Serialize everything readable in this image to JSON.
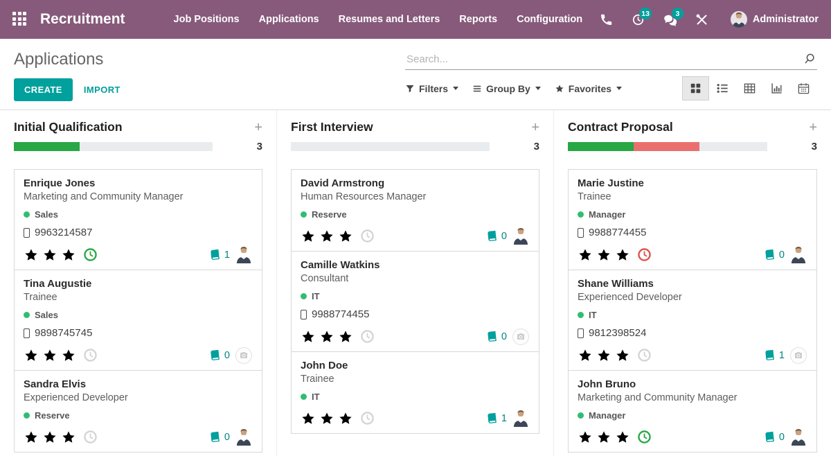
{
  "colors": {
    "topbar_purple": "#875A7B",
    "accent_teal": "#00A09D",
    "progress_green": "#28a745",
    "progress_red": "#e9706e",
    "star_gold": "#efb810",
    "tag_green": "#2fbe71",
    "clock_green": "#28a745",
    "clock_red": "#e0504d"
  },
  "topbar": {
    "app_name": "Recruitment",
    "menu_items": [
      "Job Positions",
      "Applications",
      "Resumes and Letters",
      "Reports",
      "Configuration"
    ],
    "activities_badge": "13",
    "messages_badge": "3",
    "user_name": "Administrator"
  },
  "control_panel": {
    "title": "Applications",
    "create_label": "CREATE",
    "import_label": "IMPORT",
    "search_placeholder": "Search...",
    "filters_label": "Filters",
    "group_by_label": "Group By",
    "favorites_label": "Favorites"
  },
  "kanban": {
    "columns": [
      {
        "title": "Initial Qualification",
        "count": "3",
        "add_label": "+",
        "progress": {
          "green_pct": 33,
          "red_pct": 0
        },
        "cards": [
          {
            "name": "Enrique Jones",
            "role": "Marketing and Community Manager",
            "tag": "Sales",
            "mobile": "9963214587",
            "stars": 1,
            "clock": "green",
            "messages": "1",
            "avatar": "photo"
          },
          {
            "name": "Tina Augustie",
            "role": "Trainee",
            "tag": "Sales",
            "mobile": "9898745745",
            "stars": 0,
            "clock": "muted",
            "messages": "0",
            "avatar": "placeholder"
          },
          {
            "name": "Sandra Elvis",
            "role": "Experienced Developer",
            "tag": "Reserve",
            "stars": 0,
            "clock": "muted",
            "messages": "0",
            "avatar": "photo"
          }
        ]
      },
      {
        "title": "First Interview",
        "count": "3",
        "add_label": "+",
        "progress": {
          "green_pct": 0,
          "red_pct": 0
        },
        "cards": [
          {
            "name": "David Armstrong",
            "role": "Human Resources Manager",
            "tag": "Reserve",
            "stars": 1,
            "clock": "muted",
            "messages": "0",
            "avatar": "photo"
          },
          {
            "name": "Camille Watkins",
            "role": "Consultant",
            "tag": "IT",
            "mobile": "9988774455",
            "stars": 0,
            "clock": "muted",
            "messages": "0",
            "avatar": "placeholder"
          },
          {
            "name": "John Doe",
            "role": "Trainee",
            "tag": "IT",
            "stars": 0,
            "clock": "muted",
            "messages": "1",
            "avatar": "photo"
          }
        ]
      },
      {
        "title": "Contract Proposal",
        "count": "3",
        "add_label": "+",
        "progress": {
          "green_pct": 33,
          "red_pct": 33
        },
        "cards": [
          {
            "name": "Marie Justine",
            "role": "Trainee",
            "tag": "Manager",
            "mobile": "9988774455",
            "stars": 2,
            "clock": "red",
            "messages": "0",
            "avatar": "photo"
          },
          {
            "name": "Shane Williams",
            "role": "Experienced Developer",
            "tag": "IT",
            "mobile": "9812398524",
            "stars": 0,
            "clock": "muted",
            "messages": "1",
            "avatar": "placeholder"
          },
          {
            "name": "John Bruno",
            "role": "Marketing and Community Manager",
            "tag": "Manager",
            "stars": 0,
            "clock": "green",
            "messages": "0",
            "avatar": "photo"
          }
        ]
      }
    ]
  }
}
